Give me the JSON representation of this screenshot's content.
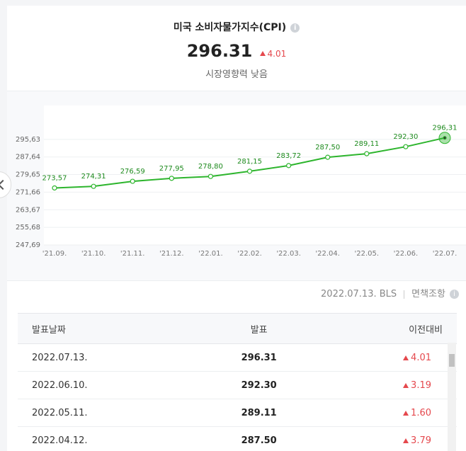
{
  "header": {
    "title": "미국 소비자물가지수(CPI)",
    "value": "296.31",
    "change": "4.01",
    "subtitle": "시장영향력 낮음"
  },
  "chart_data": {
    "type": "line",
    "categories": [
      "'21.09.",
      "'21.10.",
      "'21.11.",
      "'21.12.",
      "'22.01.",
      "'22.02.",
      "'22.03.",
      "'22.04.",
      "'22.05.",
      "'22.06.",
      "'22.07."
    ],
    "series": [
      {
        "color": "#2db52d",
        "values": [
          273.57,
          274.31,
          276.59,
          277.95,
          278.8,
          281.15,
          283.72,
          287.5,
          289.11,
          292.3,
          296.31
        ],
        "value_labels": [
          "273,57",
          "274,31",
          "276,59",
          "277,95",
          "278,80",
          "281,15",
          "283,72",
          "287,50",
          "289,11",
          "292,30",
          "296,31"
        ]
      }
    ],
    "ylim": [
      247.69,
      311
    ],
    "yticks": [
      {
        "value": 247.69,
        "label": "247,69"
      },
      {
        "value": 255.68,
        "label": "255,68"
      },
      {
        "value": 263.67,
        "label": "263,67"
      },
      {
        "value": 271.66,
        "label": "271,66"
      },
      {
        "value": 279.65,
        "label": "279,65"
      },
      {
        "value": 287.64,
        "label": "287,64"
      },
      {
        "value": 295.63,
        "label": "295,63"
      }
    ],
    "grid": true
  },
  "source": {
    "text": "2022.07.13. BLS",
    "disclaimer": "면책조항"
  },
  "table": {
    "headers": [
      "발표날짜",
      "발표",
      "이전대비"
    ],
    "rows": [
      [
        "2022.07.13.",
        "296.31",
        "4.01"
      ],
      [
        "2022.06.10.",
        "292.30",
        "3.19"
      ],
      [
        "2022.05.11.",
        "289.11",
        "1.60"
      ],
      [
        "2022.04.12.",
        "287.50",
        "3.79"
      ]
    ]
  }
}
